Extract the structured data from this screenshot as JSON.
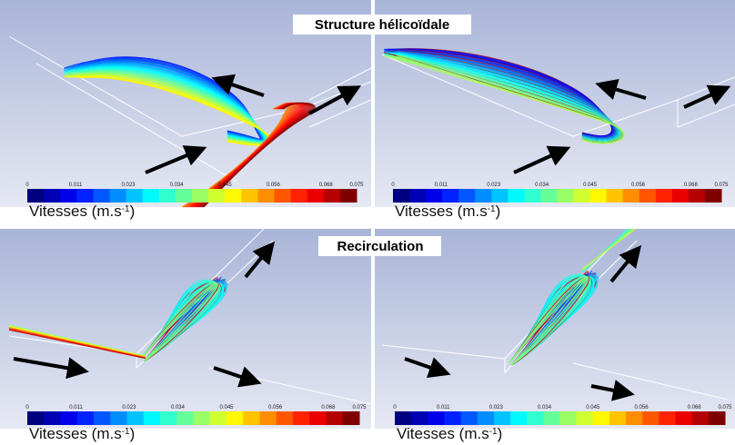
{
  "titles": [
    "Structure hélicoïdale",
    "Recirculation"
  ],
  "colorbar": {
    "ticks": [
      "0",
      "0.011",
      "0.023",
      "0.034",
      "0.045",
      "0.056",
      "0.068",
      "0.075"
    ],
    "label": {
      "text": "Vitesses (m.s",
      "sup": "-1",
      "close": ")"
    }
  }
}
